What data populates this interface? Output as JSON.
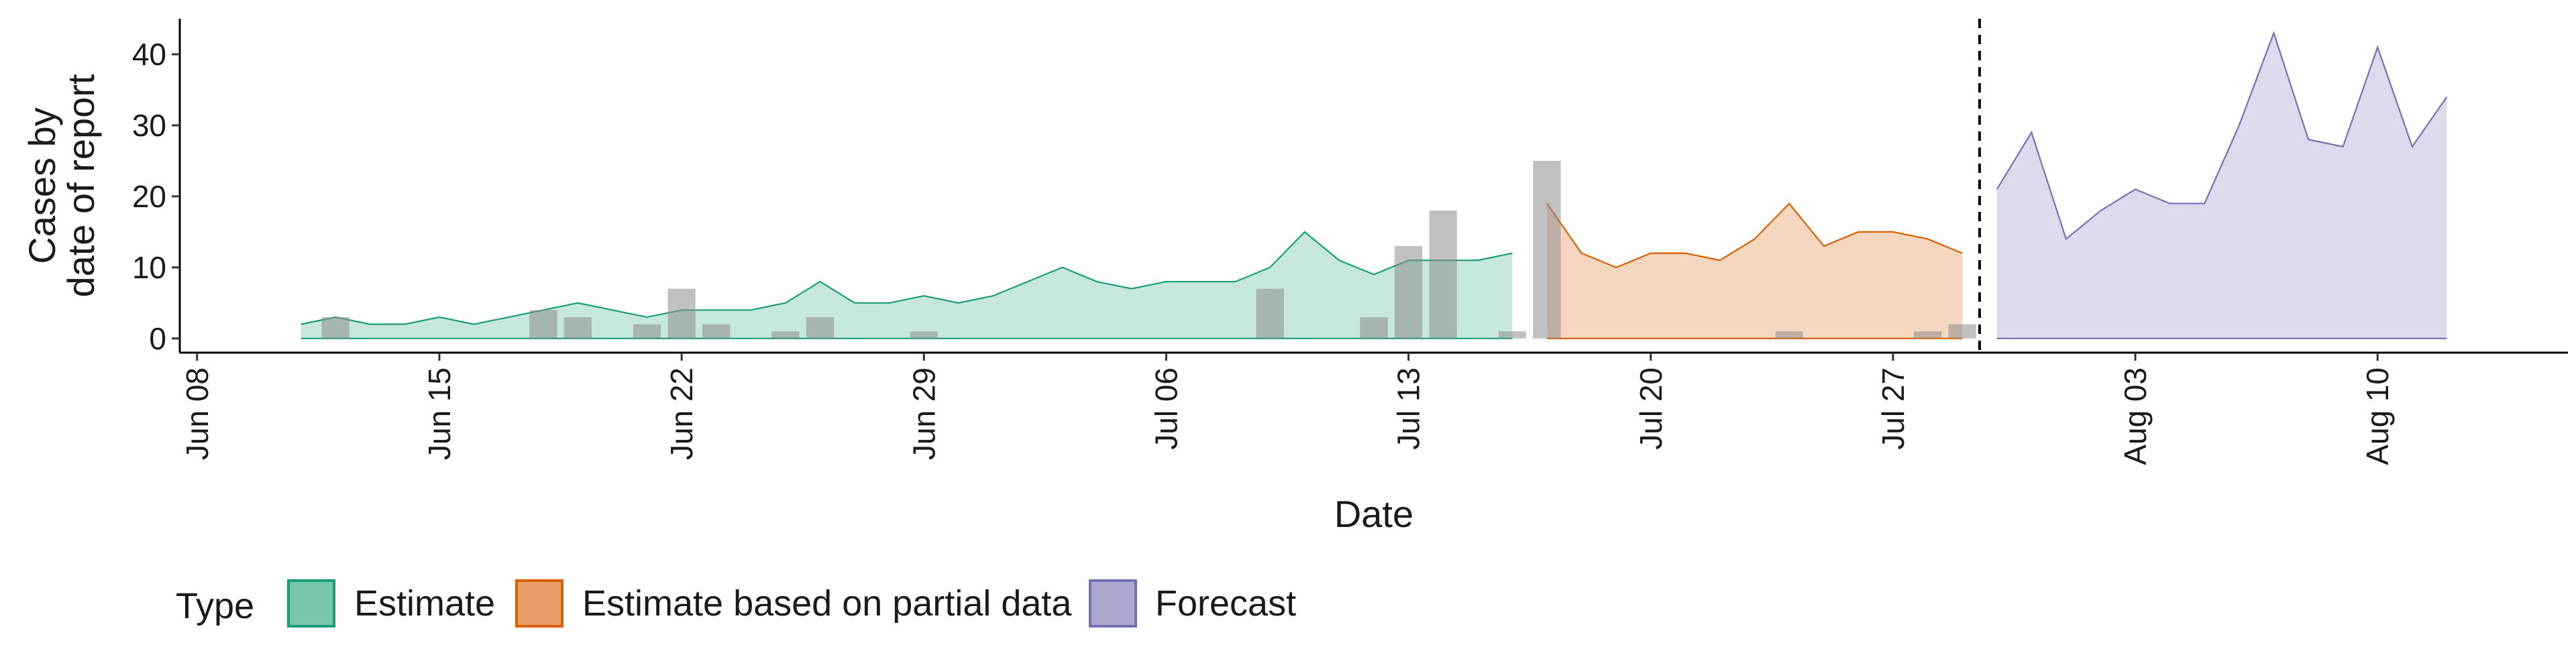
{
  "chart_data": {
    "type": "area",
    "xlabel": "Date",
    "ylabel_lines": [
      "Cases by",
      "date of report"
    ],
    "x_ticks": [
      "Jun 08",
      "Jun 15",
      "Jun 22",
      "Jun 29",
      "Jul 06",
      "Jul 13",
      "Jul 20",
      "Jul 27",
      "Aug 03",
      "Aug 10"
    ],
    "x_tick_days": [
      0,
      7,
      14,
      21,
      28,
      35,
      42,
      49,
      56,
      63
    ],
    "xlim_days": [
      -0.5,
      68.5
    ],
    "y_ticks": [
      0,
      10,
      20,
      30,
      40
    ],
    "ylim": [
      -2,
      45
    ],
    "forecast_cutoff_day": 51.5,
    "grid": false,
    "legend": {
      "position": "bottom-left",
      "title": "Type",
      "items": [
        {
          "label": "Estimate",
          "fill": "#1b9e77",
          "stroke": "#1b9e77"
        },
        {
          "label": "Estimate based on partial data",
          "fill": "#d95f02",
          "stroke": "#d95f02"
        },
        {
          "label": "Forecast",
          "fill": "#7570b3",
          "stroke": "#7570b3"
        }
      ]
    },
    "series": [
      {
        "name": "Estimate",
        "color": "#1b9e77",
        "x_days": [
          3,
          4,
          5,
          6,
          7,
          8,
          9,
          10,
          11,
          12,
          13,
          14,
          15,
          16,
          17,
          18,
          19,
          20,
          21,
          22,
          23,
          24,
          25,
          26,
          27,
          28,
          29,
          30,
          31,
          32,
          33,
          34,
          35,
          36,
          37,
          38
        ],
        "values": [
          2,
          3,
          2,
          2,
          3,
          2,
          3,
          4,
          5,
          4,
          3,
          4,
          4,
          4,
          5,
          8,
          5,
          5,
          6,
          5,
          6,
          8,
          10,
          8,
          7,
          8,
          8,
          8,
          10,
          15,
          11,
          9,
          11,
          11,
          11,
          12
        ]
      },
      {
        "name": "Estimate based on partial data",
        "color": "#d95f02",
        "x_days": [
          39,
          40,
          41,
          42,
          43,
          44,
          45,
          46,
          47,
          48,
          49,
          50,
          51
        ],
        "values": [
          19,
          12,
          10,
          12,
          12,
          11,
          14,
          19,
          13,
          15,
          15,
          14,
          12
        ]
      },
      {
        "name": "Forecast",
        "color": "#7570b3",
        "x_days": [
          52,
          53,
          54,
          55,
          56,
          57,
          58,
          59,
          60,
          61,
          62,
          63,
          64,
          65
        ],
        "values": [
          21,
          29,
          14,
          18,
          21,
          19,
          19,
          30,
          43,
          28,
          27,
          41,
          27,
          34
        ]
      }
    ],
    "observed_cases": {
      "color": "#8c8c8c",
      "x_days": [
        4,
        10,
        11,
        13,
        14,
        15,
        17,
        18,
        21,
        31,
        34,
        35,
        36,
        38,
        39,
        46,
        50,
        51
      ],
      "values": [
        3,
        4,
        3,
        2,
        7,
        2,
        1,
        3,
        1,
        7,
        3,
        13,
        18,
        1,
        25,
        1,
        1,
        2
      ]
    }
  }
}
